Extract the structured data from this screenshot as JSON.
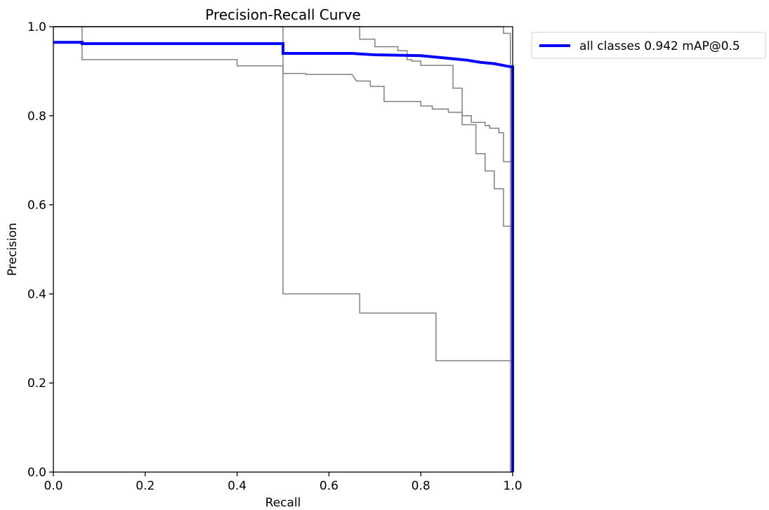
{
  "chart_data": {
    "type": "line",
    "title": "Precision-Recall Curve",
    "xlabel": "Recall",
    "ylabel": "Precision",
    "xlim": [
      0.0,
      1.0
    ],
    "ylim": [
      0.0,
      1.0
    ],
    "x_ticks": [
      "0.0",
      "0.2",
      "0.4",
      "0.6",
      "0.8",
      "1.0"
    ],
    "y_ticks": [
      "0.0",
      "0.2",
      "0.4",
      "0.6",
      "0.8",
      "1.0"
    ],
    "grid": false,
    "legend_position": "outside-top-right",
    "series": [
      {
        "name": "",
        "color": "#808080",
        "points": [
          [
            0.0,
            1.0
          ],
          [
            0.5,
            1.0
          ],
          [
            0.5,
            0.4
          ],
          [
            0.667,
            0.4
          ],
          [
            0.667,
            0.357
          ],
          [
            0.833,
            0.357
          ],
          [
            0.833,
            0.25
          ],
          [
            1.0,
            0.25
          ],
          [
            1.0,
            0.0
          ]
        ]
      },
      {
        "name": "",
        "color": "#808080",
        "points": [
          [
            0.0,
            1.0
          ],
          [
            0.0625,
            1.0
          ],
          [
            0.0625,
            0.926
          ],
          [
            0.4,
            0.926
          ],
          [
            0.4,
            0.912
          ],
          [
            0.5,
            0.912
          ],
          [
            0.5,
            0.895
          ],
          [
            0.55,
            0.895
          ],
          [
            0.55,
            0.893
          ],
          [
            0.65,
            0.893
          ],
          [
            0.66,
            0.878
          ],
          [
            0.69,
            0.878
          ],
          [
            0.69,
            0.866
          ],
          [
            0.72,
            0.866
          ],
          [
            0.72,
            0.832
          ],
          [
            0.8,
            0.832
          ],
          [
            0.8,
            0.822
          ],
          [
            0.825,
            0.822
          ],
          [
            0.825,
            0.815
          ],
          [
            0.86,
            0.815
          ],
          [
            0.86,
            0.808
          ],
          [
            0.89,
            0.808
          ],
          [
            0.89,
            0.78
          ],
          [
            0.92,
            0.78
          ],
          [
            0.92,
            0.715
          ],
          [
            0.94,
            0.715
          ],
          [
            0.94,
            0.676
          ],
          [
            0.96,
            0.676
          ],
          [
            0.96,
            0.636
          ],
          [
            0.98,
            0.636
          ],
          [
            0.98,
            0.552
          ],
          [
            1.0,
            0.552
          ],
          [
            1.0,
            0.0
          ]
        ]
      },
      {
        "name": "",
        "color": "#808080",
        "points": [
          [
            0.0,
            1.0
          ],
          [
            0.667,
            1.0
          ],
          [
            0.667,
            0.972
          ],
          [
            0.7,
            0.972
          ],
          [
            0.7,
            0.955
          ],
          [
            0.75,
            0.955
          ],
          [
            0.75,
            0.946
          ],
          [
            0.77,
            0.946
          ],
          [
            0.77,
            0.926
          ],
          [
            0.78,
            0.926
          ],
          [
            0.78,
            0.923
          ],
          [
            0.8,
            0.923
          ],
          [
            0.8,
            0.913
          ],
          [
            0.87,
            0.913
          ],
          [
            0.87,
            0.862
          ],
          [
            0.89,
            0.862
          ],
          [
            0.89,
            0.8
          ],
          [
            0.91,
            0.8
          ],
          [
            0.91,
            0.785
          ],
          [
            0.94,
            0.785
          ],
          [
            0.94,
            0.778
          ],
          [
            0.95,
            0.778
          ],
          [
            0.95,
            0.772
          ],
          [
            0.97,
            0.772
          ],
          [
            0.97,
            0.762
          ],
          [
            0.98,
            0.762
          ],
          [
            0.98,
            0.697
          ],
          [
            1.0,
            0.697
          ],
          [
            1.0,
            0.0
          ]
        ]
      },
      {
        "name": "",
        "color": "#808080",
        "points": [
          [
            0.0,
            1.0
          ],
          [
            0.98,
            1.0
          ],
          [
            0.98,
            0.985
          ],
          [
            0.995,
            0.985
          ],
          [
            0.995,
            0.0
          ]
        ]
      },
      {
        "name": "all classes 0.942 mAP@0.5",
        "color": "#0000ff",
        "points": [
          [
            0.0,
            0.965
          ],
          [
            0.0625,
            0.965
          ],
          [
            0.0625,
            0.962
          ],
          [
            0.4,
            0.962
          ],
          [
            0.5,
            0.962
          ],
          [
            0.5,
            0.94
          ],
          [
            0.65,
            0.94
          ],
          [
            0.7,
            0.937
          ],
          [
            0.8,
            0.935
          ],
          [
            0.85,
            0.93
          ],
          [
            0.9,
            0.925
          ],
          [
            0.93,
            0.92
          ],
          [
            0.96,
            0.917
          ],
          [
            0.98,
            0.913
          ],
          [
            0.995,
            0.91
          ],
          [
            1.0,
            0.91
          ],
          [
            1.0,
            0.0
          ]
        ]
      }
    ]
  }
}
